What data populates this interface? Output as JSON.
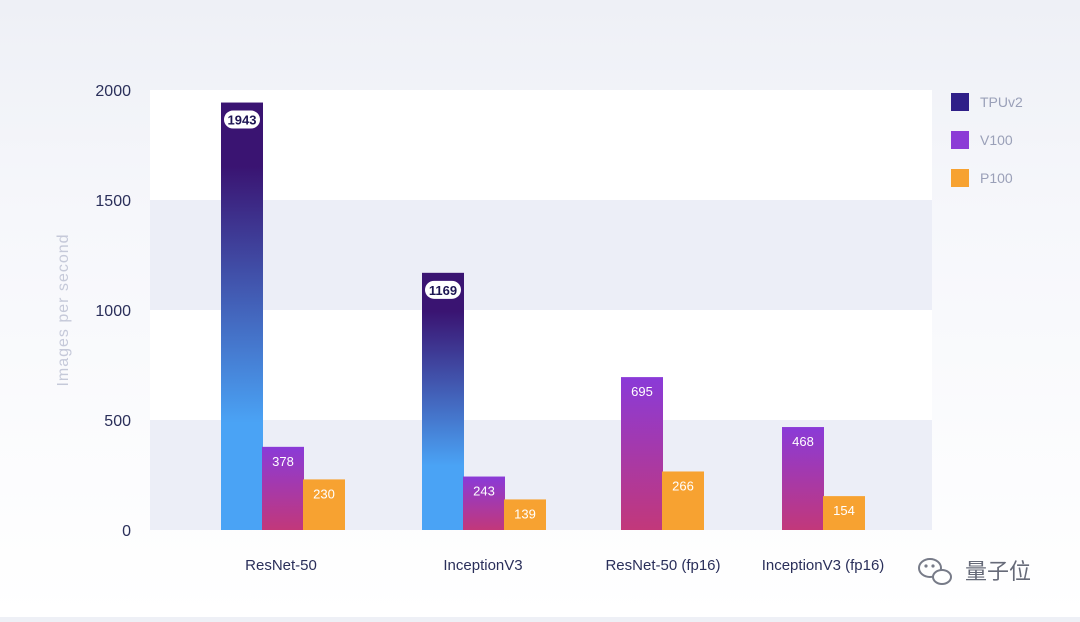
{
  "chart_data": {
    "type": "bar",
    "ylabel": "Images per second",
    "ylim": [
      0,
      2000
    ],
    "yticks": [
      0,
      500,
      1000,
      1500,
      2000
    ],
    "categories": [
      "ResNet-50",
      "InceptionV3",
      "ResNet-50 (fp16)",
      "InceptionV3 (fp16)"
    ],
    "series": [
      {
        "name": "TPUv2",
        "values": [
          1943,
          1169,
          null,
          null
        ]
      },
      {
        "name": "V100",
        "values": [
          378,
          243,
          695,
          468
        ]
      },
      {
        "name": "P100",
        "values": [
          230,
          139,
          266,
          154
        ]
      }
    ],
    "legend_position": "top-right",
    "grid": "alternating bands"
  },
  "watermark": {
    "text": "量子位"
  },
  "colors": {
    "tpu_top": "#3a1472",
    "tpu_bottom": "#4aa3f5",
    "v100_top": "#8a3ad8",
    "v100_bottom": "#c2387a",
    "p100": "#f7a231",
    "band": "#eceef7",
    "legend_tpu": "#2f1f88",
    "legend_v100": "#8c3bd6",
    "legend_p100": "#f7a231"
  }
}
